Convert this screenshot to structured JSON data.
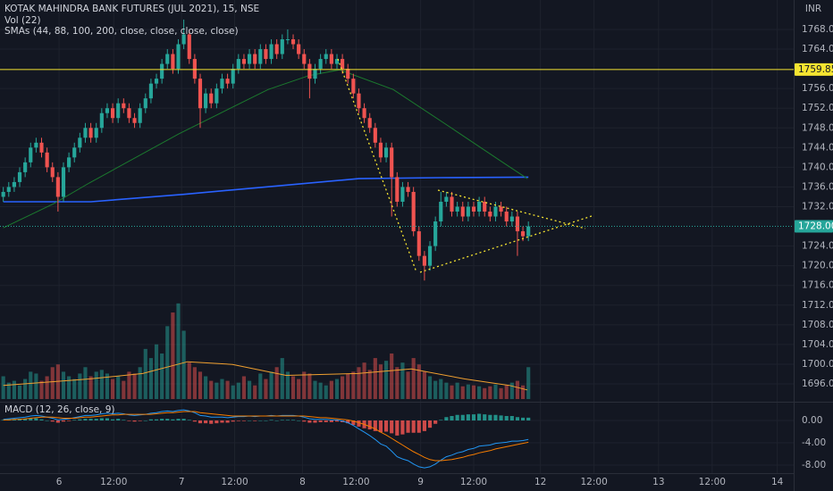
{
  "chart_data": {
    "type": "candlestick",
    "title": "KOTAK MAHINDRA BANK FUTURES (JUL 2021), 15, NSE",
    "volume_label": "Vol (22)",
    "sma_label": "SMAs (44, 88, 100, 200, close, close, close, close)",
    "macd_label": "MACD (12, 26, close, 9)",
    "currency": "INR",
    "up_color": "#26a69a",
    "down_color": "#ef5350",
    "grid": true,
    "xlim": [
      -0.6,
      144.5
    ],
    "ylim": [
      1692.56,
      1773.98
    ],
    "volume_ylim": [
      0,
      438
    ],
    "xticks": [
      {
        "value": 10.2,
        "label": "6"
      },
      {
        "value": 20.2,
        "label": "12:00"
      },
      {
        "value": 32.6,
        "label": "7"
      },
      {
        "value": 42.3,
        "label": "12:00"
      },
      {
        "value": 54.7,
        "label": "8"
      },
      {
        "value": 64.5,
        "label": "12:00"
      },
      {
        "value": 76.3,
        "label": "9"
      },
      {
        "value": 86,
        "label": "12:00"
      },
      {
        "value": 98.2,
        "label": "12"
      },
      {
        "value": 108,
        "label": "12:00"
      },
      {
        "value": 119.8,
        "label": "13"
      },
      {
        "value": 129.6,
        "label": "12:00"
      },
      {
        "value": 141.5,
        "label": "14"
      }
    ],
    "yticks": [
      {
        "value": 1768,
        "label": "1768.00"
      },
      {
        "value": 1764,
        "label": "1764.00"
      },
      {
        "value": 1756,
        "label": "1756.00"
      },
      {
        "value": 1752,
        "label": "1752.00"
      },
      {
        "value": 1748,
        "label": "1748.00"
      },
      {
        "value": 1744,
        "label": "1744.00"
      },
      {
        "value": 1740,
        "label": "1740.00"
      },
      {
        "value": 1736,
        "label": "1736.00"
      },
      {
        "value": 1732,
        "label": "1732.00"
      },
      {
        "value": 1724,
        "label": "1724.00"
      },
      {
        "value": 1720,
        "label": "1720.00"
      },
      {
        "value": 1716,
        "label": "1716.00"
      },
      {
        "value": 1712,
        "label": "1712.00"
      },
      {
        "value": 1708,
        "label": "1708.00"
      },
      {
        "value": 1704,
        "label": "1704.00"
      },
      {
        "value": 1700,
        "label": "1700.00"
      },
      {
        "value": 1696,
        "label": "1696.00"
      }
    ],
    "open": [
      1734,
      1735,
      1736,
      1737,
      1739,
      1741,
      1744,
      1745,
      1743,
      1740,
      1738,
      1734,
      1740,
      1742,
      1744,
      1746,
      1748,
      1746,
      1748,
      1751,
      1752,
      1750,
      1753,
      1752,
      1750,
      1749,
      1752,
      1754,
      1757,
      1758,
      1761,
      1763,
      1760,
      1765,
      1767,
      1762,
      1758,
      1752,
      1755,
      1753,
      1756,
      1758,
      1757,
      1760,
      1762,
      1761,
      1763,
      1761,
      1764,
      1762,
      1765,
      1763,
      1766,
      1766,
      1765,
      1763,
      1761,
      1758,
      1760,
      1762,
      1763,
      1761,
      1762,
      1760,
      1758,
      1755,
      1752,
      1750,
      1748,
      1745,
      1742,
      1744,
      1738,
      1733,
      1736,
      1735,
      1727,
      1722,
      1720,
      1724,
      1729,
      1733,
      1734,
      1731,
      1732,
      1730,
      1732,
      1731,
      1733,
      1731,
      1730,
      1732,
      1731,
      1729,
      1730,
      1727,
      1726
    ],
    "high": [
      1736,
      1737,
      1738,
      1740,
      1742,
      1745,
      1746,
      1746,
      1744,
      1741,
      1739,
      1741,
      1743,
      1745,
      1747,
      1749,
      1749,
      1749,
      1752,
      1753,
      1753,
      1754,
      1754,
      1753,
      1751,
      1753,
      1755,
      1758,
      1759,
      1762,
      1764,
      1764,
      1766,
      1770,
      1768,
      1763,
      1759,
      1756,
      1756,
      1757,
      1759,
      1759,
      1761,
      1763,
      1763,
      1764,
      1764,
      1765,
      1765,
      1766,
      1766,
      1767,
      1768,
      1767,
      1766,
      1764,
      1762,
      1761,
      1763,
      1764,
      1764,
      1763,
      1763,
      1761,
      1759,
      1756,
      1753,
      1751,
      1749,
      1746,
      1745,
      1745,
      1739,
      1737,
      1737,
      1736,
      1728,
      1723,
      1725,
      1730,
      1735,
      1735,
      1735,
      1733,
      1733,
      1733,
      1733,
      1734,
      1734,
      1732,
      1733,
      1733,
      1732,
      1731,
      1731,
      1728,
      1729
    ],
    "low": [
      1733,
      1734,
      1735,
      1736,
      1738,
      1740,
      1743,
      1742,
      1739,
      1737,
      1731,
      1733,
      1739,
      1741,
      1743,
      1745,
      1745,
      1745,
      1747,
      1750,
      1749,
      1749,
      1751,
      1749,
      1748,
      1748,
      1751,
      1753,
      1756,
      1757,
      1760,
      1759,
      1759,
      1764,
      1761,
      1757,
      1748,
      1751,
      1752,
      1752,
      1755,
      1756,
      1756,
      1759,
      1760,
      1760,
      1760,
      1760,
      1761,
      1761,
      1762,
      1762,
      1765,
      1764,
      1762,
      1760,
      1754,
      1757,
      1759,
      1761,
      1760,
      1760,
      1759,
      1757,
      1754,
      1751,
      1749,
      1747,
      1744,
      1741,
      1741,
      1730,
      1732,
      1732,
      1734,
      1726,
      1721,
      1717,
      1719,
      1723,
      1728,
      1732,
      1730,
      1730,
      1729,
      1729,
      1730,
      1730,
      1730,
      1729,
      1729,
      1730,
      1728,
      1728,
      1722,
      1725,
      1725
    ],
    "close": [
      1735,
      1736,
      1737,
      1739,
      1741,
      1744,
      1745,
      1743,
      1740,
      1738,
      1734,
      1740,
      1742,
      1744,
      1746,
      1748,
      1746,
      1748,
      1751,
      1752,
      1750,
      1753,
      1752,
      1750,
      1749,
      1752,
      1754,
      1757,
      1758,
      1761,
      1763,
      1760,
      1765,
      1767,
      1762,
      1758,
      1752,
      1755,
      1753,
      1756,
      1758,
      1757,
      1760,
      1762,
      1761,
      1763,
      1761,
      1764,
      1762,
      1765,
      1763,
      1766,
      1766,
      1765,
      1763,
      1761,
      1758,
      1760,
      1762,
      1763,
      1761,
      1762,
      1760,
      1758,
      1755,
      1752,
      1750,
      1748,
      1745,
      1742,
      1744,
      1738,
      1733,
      1736,
      1735,
      1727,
      1722,
      1720,
      1724,
      1729,
      1733,
      1734,
      1731,
      1732,
      1730,
      1732,
      1731,
      1733,
      1731,
      1730,
      1732,
      1731,
      1729,
      1730,
      1727,
      1726,
      1728
    ],
    "volume": [
      25,
      18,
      20,
      15,
      22,
      30,
      28,
      20,
      25,
      35,
      38,
      30,
      25,
      22,
      28,
      35,
      25,
      30,
      32,
      28,
      22,
      25,
      20,
      30,
      28,
      35,
      55,
      45,
      60,
      50,
      80,
      95,
      105,
      75,
      40,
      35,
      30,
      25,
      20,
      18,
      22,
      20,
      15,
      18,
      25,
      20,
      15,
      28,
      22,
      30,
      35,
      45,
      30,
      25,
      22,
      30,
      28,
      20,
      18,
      15,
      20,
      22,
      25,
      28,
      30,
      35,
      40,
      32,
      45,
      38,
      42,
      50,
      35,
      40,
      30,
      45,
      38,
      30,
      25,
      20,
      22,
      18,
      15,
      18,
      14,
      16,
      15,
      14,
      12,
      14,
      16,
      12,
      15,
      18,
      20,
      15,
      35
    ],
    "volume_ma": {
      "color": "#f0a030",
      "x": [
        0,
        15.7,
        25.5,
        33.7,
        41.9,
        51.7,
        64.8,
        74.6,
        84.4,
        92.5,
        95.8
      ],
      "values": [
        15,
        22,
        28,
        41,
        38,
        26,
        28,
        33,
        22,
        15,
        10
      ]
    },
    "sma": [
      {
        "color": "#2962ff",
        "x": [
          0,
          16,
          33,
          48,
          65,
          80,
          96
        ],
        "values": [
          1733,
          1733,
          1734.5,
          1736,
          1737.7,
          1737.9,
          1738
        ]
      },
      {
        "color": "#1b7a2e",
        "x": [
          0,
          9.2,
          15.7,
          32.1,
          48.4,
          55.8,
          61.5,
          71.3,
          81.1,
          90.9,
          95.8
        ],
        "values": [
          1727.7,
          1732.6,
          1736.8,
          1746.8,
          1755.8,
          1758.6,
          1759.8,
          1755.8,
          1748.6,
          1741.3,
          1737.7
        ]
      }
    ],
    "price_lines": [
      {
        "value": 1759.85,
        "label": "1759.85",
        "color": "#f5e431",
        "text_color": "#131722"
      },
      {
        "value": 1728,
        "label": "1728.00",
        "color": "#26a69a",
        "text_color": "#ffffff"
      }
    ],
    "macd": {
      "ylim": [
        -9.44,
        3.04
      ],
      "yticks": [
        {
          "value": 0,
          "label": "0.00"
        },
        {
          "value": -4,
          "label": "-4.00"
        },
        {
          "value": -8,
          "label": "-8.00"
        }
      ],
      "macd_color": "#2196f3",
      "signal_color": "#f57c00",
      "macd": [
        0.2,
        0.3,
        0.4,
        0.5,
        0.6,
        0.8,
        0.9,
        0.8,
        0.6,
        0.4,
        0.1,
        0.2,
        0.3,
        0.5,
        0.7,
        0.9,
        0.9,
        1.0,
        1.2,
        1.3,
        1.2,
        1.3,
        1.2,
        1.0,
        0.9,
        1.0,
        1.1,
        1.3,
        1.4,
        1.6,
        1.7,
        1.6,
        1.8,
        1.9,
        1.7,
        1.4,
        0.9,
        0.8,
        0.6,
        0.6,
        0.6,
        0.5,
        0.6,
        0.7,
        0.7,
        0.8,
        0.7,
        0.8,
        0.8,
        0.9,
        0.8,
        0.9,
        0.9,
        0.9,
        0.8,
        0.6,
        0.3,
        0.2,
        0.2,
        0.2,
        0.1,
        0.1,
        -0.1,
        -0.4,
        -0.9,
        -1.5,
        -2.1,
        -2.7,
        -3.4,
        -4.2,
        -4.6,
        -5.5,
        -6.5,
        -6.9,
        -7.2,
        -7.8,
        -8.3,
        -8.5,
        -8.3,
        -7.8,
        -7.1,
        -6.5,
        -6.2,
        -5.8,
        -5.6,
        -5.2,
        -5.0,
        -4.6,
        -4.5,
        -4.4,
        -4.1,
        -4.0,
        -3.9,
        -3.7,
        -3.7,
        -3.6,
        -3.4
      ],
      "signal": [
        0.1,
        0.1,
        0.2,
        0.2,
        0.3,
        0.4,
        0.5,
        0.6,
        0.6,
        0.6,
        0.5,
        0.4,
        0.4,
        0.4,
        0.5,
        0.6,
        0.6,
        0.7,
        0.8,
        0.9,
        1.0,
        1.0,
        1.1,
        1.1,
        1.1,
        1.1,
        1.1,
        1.1,
        1.2,
        1.3,
        1.4,
        1.4,
        1.5,
        1.6,
        1.6,
        1.6,
        1.4,
        1.3,
        1.2,
        1.1,
        1.0,
        0.9,
        0.8,
        0.8,
        0.8,
        0.8,
        0.8,
        0.8,
        0.8,
        0.8,
        0.8,
        0.8,
        0.8,
        0.8,
        0.8,
        0.8,
        0.7,
        0.6,
        0.5,
        0.5,
        0.4,
        0.3,
        0.2,
        0.1,
        -0.1,
        -0.4,
        -0.7,
        -1.1,
        -1.5,
        -2.1,
        -2.6,
        -3.2,
        -3.8,
        -4.4,
        -5.0,
        -5.6,
        -6.1,
        -6.6,
        -7.0,
        -7.2,
        -7.2,
        -7.1,
        -7.0,
        -6.8,
        -6.6,
        -6.3,
        -6.1,
        -5.8,
        -5.6,
        -5.4,
        -5.1,
        -4.9,
        -4.7,
        -4.5,
        -4.3,
        -4.1,
        -3.9
      ],
      "histogram": [
        0.1,
        0.2,
        0.2,
        0.3,
        0.3,
        0.4,
        0.4,
        0.2,
        0,
        -0.2,
        -0.4,
        -0.2,
        -0.1,
        0.1,
        0.2,
        0.3,
        0.3,
        0.3,
        0.4,
        0.4,
        0.2,
        0.3,
        0.1,
        -0.1,
        -0.2,
        -0.1,
        0,
        0.2,
        0.2,
        0.3,
        0.3,
        0.2,
        0.3,
        0.3,
        0.1,
        -0.2,
        -0.5,
        -0.5,
        -0.6,
        -0.5,
        -0.4,
        -0.4,
        -0.2,
        -0.1,
        -0.1,
        0,
        -0.1,
        0,
        0,
        0.1,
        0,
        0.1,
        0.1,
        0.1,
        0,
        -0.2,
        -0.4,
        -0.4,
        -0.3,
        -0.3,
        -0.3,
        -0.2,
        -0.3,
        -0.5,
        -0.8,
        -1.1,
        -1.4,
        -1.6,
        -1.9,
        -2.1,
        -2.0,
        -2.3,
        -2.7,
        -2.5,
        -2.2,
        -2.2,
        -2.2,
        -1.9,
        -1.3,
        -0.6,
        0.1,
        0.6,
        0.8,
        1.0,
        1.0,
        1.1,
        1.1,
        1.2,
        1.1,
        1.0,
        1.0,
        0.9,
        0.8,
        0.8,
        0.6,
        0.5,
        0.5
      ]
    }
  }
}
